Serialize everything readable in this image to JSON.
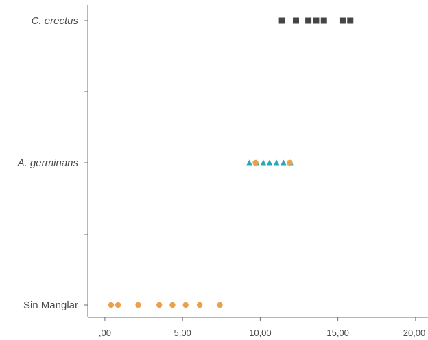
{
  "chart_data": {
    "type": "scatter",
    "orientation": "horizontal-categories",
    "categories": [
      {
        "label": "C. erectus",
        "italic": true
      },
      {
        "label": "A. germinans",
        "italic": true
      },
      {
        "label": "Sin Manglar",
        "italic": false
      }
    ],
    "x_ticks": [
      ",00",
      "5,00",
      "10,00",
      "15,00",
      "20,00"
    ],
    "x_tick_values": [
      0,
      5,
      10,
      15,
      20
    ],
    "xlim": [
      -1.1,
      20.8
    ],
    "grid": false,
    "series": [
      {
        "category": "C. erectus",
        "marker": "square",
        "color": "#454545",
        "values": [
          11.4,
          12.3,
          13.1,
          13.6,
          14.1,
          15.3,
          15.8
        ]
      },
      {
        "category": "A. germinans",
        "marker": "triangle",
        "color": "#26a9b5",
        "values": [
          9.3,
          9.75,
          10.2,
          10.6,
          11.05,
          11.5,
          11.95
        ]
      },
      {
        "category": "A. germinans",
        "marker": "circle",
        "color": "#e9a24b",
        "values": [
          9.7,
          11.9
        ]
      },
      {
        "category": "Sin Manglar",
        "marker": "circle",
        "color": "#e9a24b",
        "values": [
          0.4,
          0.85,
          2.15,
          3.5,
          4.35,
          5.2,
          6.1,
          7.4
        ]
      }
    ]
  }
}
